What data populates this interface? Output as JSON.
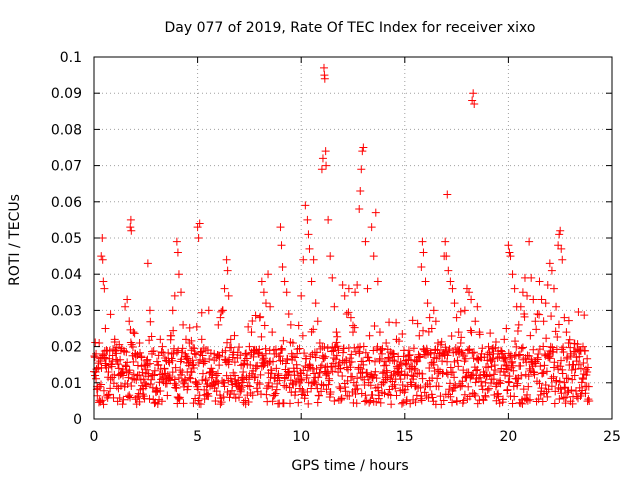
{
  "chart_data": {
    "type": "scatter",
    "title": "Day 077 of 2019, Rate Of TEC Index for receiver xixo",
    "xlabel": "GPS time / hours",
    "ylabel": "ROTI / TECUs",
    "xlim": [
      0,
      25
    ],
    "ylim": [
      0,
      0.1
    ],
    "xticks": [
      "0",
      "5",
      "10",
      "15",
      "20",
      "25"
    ],
    "yticks": [
      "0",
      "0.01",
      "0.02",
      "0.03",
      "0.04",
      "0.05",
      "0.06",
      "0.07",
      "0.08",
      "0.09",
      "0.1"
    ],
    "grid": true,
    "marker": "plus",
    "color": "#ff0000",
    "series": [
      {
        "points": [
          [
            0.05,
            0.012
          ],
          [
            0.1,
            0.018
          ],
          [
            0.15,
            0.009
          ],
          [
            0.2,
            0.014
          ],
          [
            0.25,
            0.021
          ],
          [
            0.3,
            0.016
          ],
          [
            0.35,
            0.045
          ],
          [
            0.4,
            0.05
          ],
          [
            0.42,
            0.044
          ],
          [
            0.45,
            0.038
          ],
          [
            0.5,
            0.036
          ],
          [
            0.55,
            0.025
          ],
          [
            0.6,
            0.019
          ],
          [
            0.7,
            0.013
          ],
          [
            0.8,
            0.011
          ],
          [
            0.9,
            0.016
          ],
          [
            1.0,
            0.022
          ],
          [
            1.1,
            0.009
          ],
          [
            1.2,
            0.014
          ],
          [
            1.3,
            0.019
          ],
          [
            1.4,
            0.012
          ],
          [
            1.5,
            0.031
          ],
          [
            1.6,
            0.033
          ],
          [
            1.7,
            0.027
          ],
          [
            1.75,
            0.053
          ],
          [
            1.78,
            0.055
          ],
          [
            1.8,
            0.052
          ],
          [
            1.9,
            0.024
          ],
          [
            2.0,
            0.018
          ],
          [
            2.1,
            0.012
          ],
          [
            2.2,
            0.021
          ],
          [
            2.3,
            0.017
          ],
          [
            2.4,
            0.011
          ],
          [
            2.5,
            0.009
          ],
          [
            2.6,
            0.043
          ],
          [
            2.7,
            0.03
          ],
          [
            2.8,
            0.018
          ],
          [
            2.9,
            0.012
          ],
          [
            3.0,
            0.008
          ],
          [
            3.1,
            0.015
          ],
          [
            3.2,
            0.022
          ],
          [
            3.3,
            0.02
          ],
          [
            3.4,
            0.014
          ],
          [
            3.5,
            0.011
          ],
          [
            3.6,
            0.016
          ],
          [
            3.7,
            0.023
          ],
          [
            3.8,
            0.03
          ],
          [
            3.9,
            0.034
          ],
          [
            4.0,
            0.049
          ],
          [
            4.05,
            0.046
          ],
          [
            4.1,
            0.04
          ],
          [
            4.2,
            0.035
          ],
          [
            4.3,
            0.026
          ],
          [
            4.4,
            0.018
          ],
          [
            4.5,
            0.013
          ],
          [
            4.6,
            0.021
          ],
          [
            4.7,
            0.019
          ],
          [
            4.8,
            0.015
          ],
          [
            4.9,
            0.01
          ],
          [
            5.0,
            0.053
          ],
          [
            5.05,
            0.05
          ],
          [
            5.1,
            0.054
          ],
          [
            5.2,
            0.022
          ],
          [
            5.3,
            0.016
          ],
          [
            5.4,
            0.011
          ],
          [
            5.5,
            0.007
          ],
          [
            5.6,
            0.009
          ],
          [
            5.7,
            0.013
          ],
          [
            5.8,
            0.018
          ],
          [
            5.9,
            0.012
          ],
          [
            6.0,
            0.026
          ],
          [
            6.1,
            0.028
          ],
          [
            6.2,
            0.03
          ],
          [
            6.3,
            0.036
          ],
          [
            6.4,
            0.044
          ],
          [
            6.45,
            0.041
          ],
          [
            6.5,
            0.034
          ],
          [
            6.6,
            0.022
          ],
          [
            6.7,
            0.017
          ],
          [
            6.8,
            0.012
          ],
          [
            6.9,
            0.009
          ],
          [
            7.0,
            0.006
          ],
          [
            7.1,
            0.008
          ],
          [
            7.2,
            0.013
          ],
          [
            7.3,
            0.018
          ],
          [
            7.4,
            0.015
          ],
          [
            7.5,
            0.02
          ],
          [
            7.6,
            0.024
          ],
          [
            7.7,
            0.019
          ],
          [
            7.8,
            0.014
          ],
          [
            7.9,
            0.01
          ],
          [
            8.0,
            0.028
          ],
          [
            8.1,
            0.038
          ],
          [
            8.2,
            0.035
          ],
          [
            8.3,
            0.032
          ],
          [
            8.4,
            0.04
          ],
          [
            8.5,
            0.031
          ],
          [
            8.6,
            0.024
          ],
          [
            8.7,
            0.018
          ],
          [
            8.8,
            0.014
          ],
          [
            8.9,
            0.012
          ],
          [
            9.0,
            0.053
          ],
          [
            9.05,
            0.048
          ],
          [
            9.1,
            0.042
          ],
          [
            9.2,
            0.038
          ],
          [
            9.3,
            0.035
          ],
          [
            9.4,
            0.029
          ],
          [
            9.5,
            0.026
          ],
          [
            9.6,
            0.021
          ],
          [
            9.7,
            0.017
          ],
          [
            9.8,
            0.014
          ],
          [
            9.9,
            0.011
          ],
          [
            10.0,
            0.034
          ],
          [
            10.1,
            0.044
          ],
          [
            10.2,
            0.059
          ],
          [
            10.3,
            0.055
          ],
          [
            10.35,
            0.051
          ],
          [
            10.4,
            0.047
          ],
          [
            10.5,
            0.038
          ],
          [
            10.6,
            0.044
          ],
          [
            10.7,
            0.032
          ],
          [
            10.8,
            0.027
          ],
          [
            10.9,
            0.021
          ],
          [
            11.0,
            0.069
          ],
          [
            11.05,
            0.072
          ],
          [
            11.1,
            0.097
          ],
          [
            11.12,
            0.095
          ],
          [
            11.14,
            0.094
          ],
          [
            11.18,
            0.074
          ],
          [
            11.2,
            0.07
          ],
          [
            11.3,
            0.055
          ],
          [
            11.4,
            0.045
          ],
          [
            11.5,
            0.039
          ],
          [
            11.6,
            0.031
          ],
          [
            11.7,
            0.024
          ],
          [
            11.8,
            0.019
          ],
          [
            11.9,
            0.014
          ],
          [
            12.0,
            0.037
          ],
          [
            12.1,
            0.034
          ],
          [
            12.2,
            0.029
          ],
          [
            12.3,
            0.036
          ],
          [
            12.4,
            0.028
          ],
          [
            12.5,
            0.024
          ],
          [
            12.6,
            0.035
          ],
          [
            12.7,
            0.037
          ],
          [
            12.8,
            0.058
          ],
          [
            12.85,
            0.063
          ],
          [
            12.9,
            0.069
          ],
          [
            12.95,
            0.074
          ],
          [
            13.0,
            0.075
          ],
          [
            13.1,
            0.049
          ],
          [
            13.2,
            0.036
          ],
          [
            13.3,
            0.023
          ],
          [
            13.4,
            0.053
          ],
          [
            13.5,
            0.045
          ],
          [
            13.6,
            0.057
          ],
          [
            13.7,
            0.038
          ],
          [
            13.8,
            0.024
          ],
          [
            13.9,
            0.018
          ],
          [
            14.0,
            0.013
          ],
          [
            14.1,
            0.021
          ],
          [
            14.2,
            0.017
          ],
          [
            14.3,
            0.011
          ],
          [
            14.4,
            0.009
          ],
          [
            14.5,
            0.016
          ],
          [
            14.6,
            0.022
          ],
          [
            14.7,
            0.014
          ],
          [
            14.8,
            0.011
          ],
          [
            14.9,
            0.008
          ],
          [
            15.0,
            0.012
          ],
          [
            15.1,
            0.015
          ],
          [
            15.2,
            0.019
          ],
          [
            15.3,
            0.014
          ],
          [
            15.4,
            0.011
          ],
          [
            15.5,
            0.009
          ],
          [
            15.6,
            0.016
          ],
          [
            15.7,
            0.023
          ],
          [
            15.8,
            0.042
          ],
          [
            15.85,
            0.049
          ],
          [
            15.9,
            0.046
          ],
          [
            16.0,
            0.038
          ],
          [
            16.1,
            0.032
          ],
          [
            16.2,
            0.028
          ],
          [
            16.3,
            0.025
          ],
          [
            16.4,
            0.03
          ],
          [
            16.5,
            0.027
          ],
          [
            16.6,
            0.021
          ],
          [
            16.7,
            0.018
          ],
          [
            16.8,
            0.016
          ],
          [
            16.9,
            0.045
          ],
          [
            16.95,
            0.049
          ],
          [
            17.0,
            0.045
          ],
          [
            17.05,
            0.062
          ],
          [
            17.1,
            0.041
          ],
          [
            17.2,
            0.038
          ],
          [
            17.3,
            0.036
          ],
          [
            17.4,
            0.032
          ],
          [
            17.5,
            0.028
          ],
          [
            17.6,
            0.024
          ],
          [
            17.7,
            0.021
          ],
          [
            17.8,
            0.018
          ],
          [
            17.9,
            0.03
          ],
          [
            18.0,
            0.036
          ],
          [
            18.1,
            0.035
          ],
          [
            18.2,
            0.033
          ],
          [
            18.25,
            0.088
          ],
          [
            18.3,
            0.09
          ],
          [
            18.35,
            0.087
          ],
          [
            18.4,
            0.027
          ],
          [
            18.5,
            0.031
          ],
          [
            18.6,
            0.024
          ],
          [
            18.7,
            0.018
          ],
          [
            18.8,
            0.013
          ],
          [
            18.9,
            0.01
          ],
          [
            19.0,
            0.008
          ],
          [
            19.1,
            0.012
          ],
          [
            19.2,
            0.016
          ],
          [
            19.3,
            0.011
          ],
          [
            19.4,
            0.009
          ],
          [
            19.5,
            0.007
          ],
          [
            19.6,
            0.013
          ],
          [
            19.7,
            0.018
          ],
          [
            19.8,
            0.022
          ],
          [
            19.9,
            0.025
          ],
          [
            20.0,
            0.048
          ],
          [
            20.05,
            0.046
          ],
          [
            20.1,
            0.045
          ],
          [
            20.2,
            0.04
          ],
          [
            20.3,
            0.036
          ],
          [
            20.4,
            0.031
          ],
          [
            20.5,
            0.026
          ],
          [
            20.6,
            0.031
          ],
          [
            20.7,
            0.035
          ],
          [
            20.8,
            0.039
          ],
          [
            20.9,
            0.034
          ],
          [
            21.0,
            0.049
          ],
          [
            21.1,
            0.039
          ],
          [
            21.2,
            0.033
          ],
          [
            21.3,
            0.027
          ],
          [
            21.4,
            0.029
          ],
          [
            21.5,
            0.038
          ],
          [
            21.6,
            0.033
          ],
          [
            21.7,
            0.027
          ],
          [
            21.8,
            0.032
          ],
          [
            21.9,
            0.037
          ],
          [
            22.0,
            0.043
          ],
          [
            22.1,
            0.041
          ],
          [
            22.2,
            0.036
          ],
          [
            22.3,
            0.031
          ],
          [
            22.4,
            0.048
          ],
          [
            22.45,
            0.051
          ],
          [
            22.5,
            0.052
          ],
          [
            22.55,
            0.047
          ],
          [
            22.6,
            0.044
          ],
          [
            22.7,
            0.028
          ],
          [
            22.8,
            0.024
          ],
          [
            22.9,
            0.021
          ],
          [
            23.0,
            0.018
          ],
          [
            23.1,
            0.015
          ],
          [
            23.2,
            0.012
          ],
          [
            23.3,
            0.016
          ],
          [
            23.4,
            0.019
          ],
          [
            23.5,
            0.014
          ],
          [
            23.6,
            0.011
          ],
          [
            23.7,
            0.009
          ],
          [
            23.8,
            0.013
          ]
        ],
        "band": {
          "x_start": 0,
          "x_end": 23.9,
          "x_step": 0.02,
          "y_base": 0.012,
          "y_min": 0.002,
          "y_max": 0.03
        }
      }
    ]
  }
}
